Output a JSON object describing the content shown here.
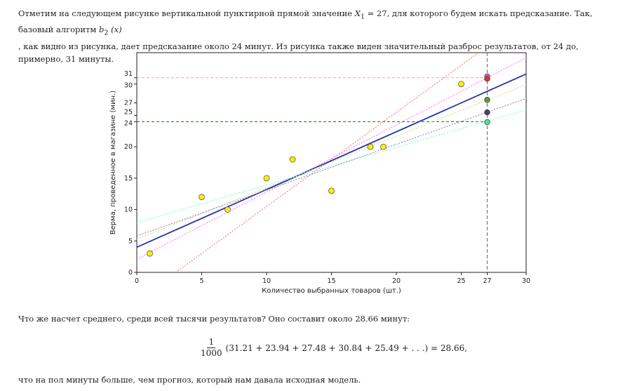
{
  "text": {
    "p1_before": "Отметим на следующем рисунке вертикальной пунктирной прямой значение ",
    "p1_var": "X",
    "p1_sub": "1",
    "p1_eq": " = 27",
    "p1_mid": ", для которого будем искать предсказание. Так, базовый алгоритм ",
    "p1_b": "b",
    "p1_b_sub": "2",
    "p1_bx": " (x)",
    "p1_after": " , как видно из рисунка, дает предсказание около 24 минут. Из рисунка также виден значительный разброс результатов, от 24 до, примерно, 31 минуты.",
    "p2": "Что же насчет среднего, среди всей тысячи результатов? Оно составит около 28.66 минут:",
    "p3": "что на пол минуты больше, чем прогноз, который нам давала исходная модель."
  },
  "formula": {
    "numerator": "1",
    "denominator": "1000",
    "body": "(31.21 + 23.94 + 27.48 + 30.84 + 25.49 + . . .) = 28.66,"
  },
  "chart_data": {
    "type": "scatter",
    "xlabel": "Количество выбранных товаров (шт.)",
    "ylabel": "Верма, проведенное в магазине (мин.)",
    "xlim": [
      0,
      30
    ],
    "ylim": [
      0,
      35
    ],
    "xticks": [
      0,
      5,
      10,
      15,
      20,
      25,
      27,
      30
    ],
    "yticks": [
      0,
      5,
      10,
      15,
      20,
      24,
      25,
      27,
      30,
      31
    ],
    "points": [
      {
        "x": 1,
        "y": 3
      },
      {
        "x": 5,
        "y": 12
      },
      {
        "x": 7,
        "y": 10
      },
      {
        "x": 10,
        "y": 15
      },
      {
        "x": 12,
        "y": 18
      },
      {
        "x": 15,
        "y": 13
      },
      {
        "x": 18,
        "y": 20
      },
      {
        "x": 19,
        "y": 20
      },
      {
        "x": 25,
        "y": 30
      }
    ],
    "lines": [
      {
        "color": "#ff6666",
        "style": "dotted",
        "slope": 1.5,
        "intercept": -4.5
      },
      {
        "color": "#ff66ff",
        "style": "dotted",
        "slope": 1.07,
        "intercept": 2.1
      },
      {
        "color": "#2233aa",
        "style": "solid",
        "slope": 0.92,
        "intercept": 4.0
      },
      {
        "color": "#c8dc78",
        "style": "dotted",
        "slope": 0.82,
        "intercept": 5.3
      },
      {
        "color": "#8877aa",
        "style": "dotted",
        "slope": 0.73,
        "intercept": 5.8
      },
      {
        "color": "#66ffcc",
        "style": "dotted",
        "slope": 0.6,
        "intercept": 7.9
      }
    ],
    "predictions": [
      {
        "y": 31.21,
        "color": "#ff44ff"
      },
      {
        "y": 30.84,
        "color": "#e03030"
      },
      {
        "y": 27.48,
        "color": "#6a9a30"
      },
      {
        "y": 25.49,
        "color": "#553a66"
      },
      {
        "y": 23.94,
        "color": "#55e0a0"
      }
    ],
    "vline_x": 27,
    "hlines": [
      {
        "y": 31,
        "color": "#ff99bb"
      },
      {
        "y": 24,
        "color": "#229922"
      }
    ],
    "grid": false
  }
}
